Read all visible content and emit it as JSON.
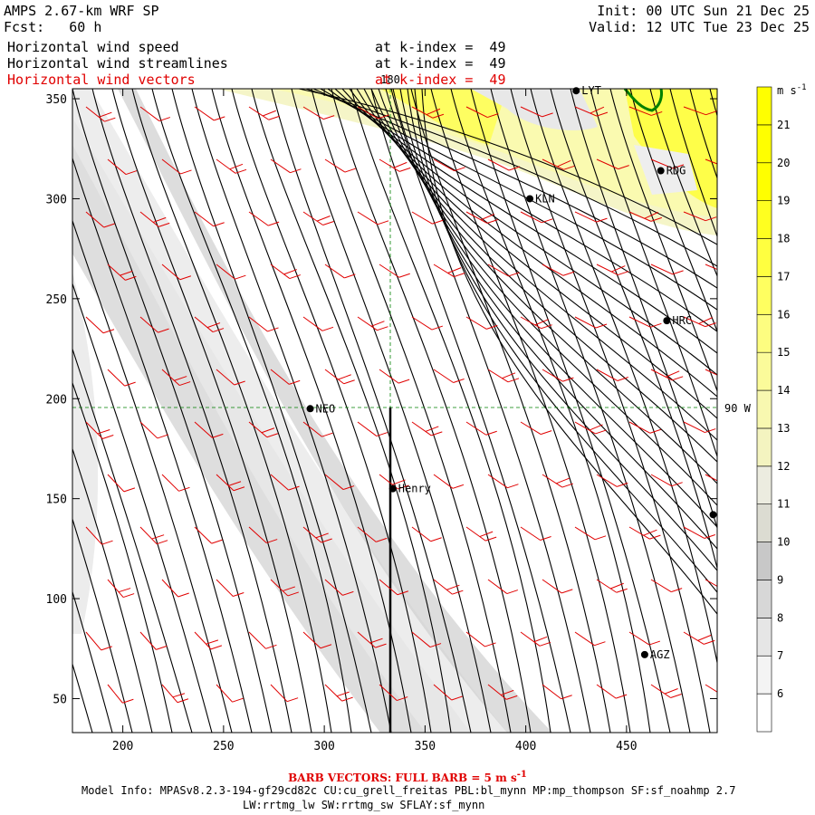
{
  "header": {
    "model": "AMPS 2.67-km WRF SP",
    "fcst": "Fcst:   60 h",
    "init": "Init: 00 UTC Sun 21 Dec 25",
    "valid": "Valid: 12 UTC Tue 23 Dec 25",
    "lines": [
      {
        "name": "Horizontal wind speed",
        "level": "at k-index =  49",
        "color": "#000000"
      },
      {
        "name": "Horizontal wind streamlines",
        "level": "at k-index =  49",
        "color": "#000000"
      },
      {
        "name": "Horizontal wind vectors",
        "level": "at k-index =  49",
        "color": "#e00000"
      }
    ]
  },
  "footer": {
    "barb_note": "BARB VECTORS:  FULL BARB = 5 m s",
    "barb_unit_sup": "-1",
    "model_info": "Model Info: MPASv8.2.3-194-gf29cd82c CU:cu_grell_freitas PBL:bl_mynn MP:mp_thompson SF:sf_noahmp 2.7",
    "model_info2": "LW:rrtmg_lw SW:rrtmg_sw SFLAY:sf_mynn"
  },
  "chart_data": {
    "type": "heatmap",
    "title": "Horizontal wind speed / streamlines / vectors at k-index = 49",
    "xlabel": "",
    "ylabel": "",
    "xlim": [
      175,
      495
    ],
    "ylim": [
      33,
      355
    ],
    "x_ticks": [
      200,
      250,
      300,
      350,
      400,
      450
    ],
    "y_ticks": [
      50,
      100,
      150,
      200,
      250,
      300,
      350
    ],
    "grid_labels": {
      "meridian": "180",
      "parallel": "90 W"
    },
    "grid_lines": {
      "x": 334,
      "y": 195
    },
    "colorbar": {
      "unit": "m s",
      "unit_sup": "-1",
      "levels": [
        6,
        7,
        8,
        9,
        10,
        11,
        12,
        13,
        14,
        15,
        16,
        17,
        18,
        19,
        20,
        21
      ],
      "colors": [
        "#ffffff",
        "#f4f4f4",
        "#e6e6e6",
        "#d7d7d7",
        "#c8c8c8",
        "#dcdcd2",
        "#ecece0",
        "#f4f4c0",
        "#f8f8b0",
        "#fbfb9a",
        "#fdfd80",
        "#ffff60",
        "#ffff40",
        "#ffff20",
        "#ffff00",
        "#ffff00"
      ]
    },
    "stations": [
      {
        "label": "LYT",
        "x": 425,
        "y": 354
      },
      {
        "label": "RDG",
        "x": 467,
        "y": 314
      },
      {
        "label": "KLN",
        "x": 402,
        "y": 300
      },
      {
        "label": "HRC",
        "x": 470,
        "y": 239
      },
      {
        "label": "NEO",
        "x": 293,
        "y": 195
      },
      {
        "label": "Henry",
        "x": 334,
        "y": 155
      },
      {
        "label": "AGZ",
        "x": 459,
        "y": 72
      },
      {
        "label": "",
        "x": 493,
        "y": 142
      }
    ],
    "colors": {
      "streamline": "#000000",
      "barb": "#e00000",
      "grid": "#008000",
      "coast": "#008000",
      "bar_fill": "#ffff00"
    }
  }
}
